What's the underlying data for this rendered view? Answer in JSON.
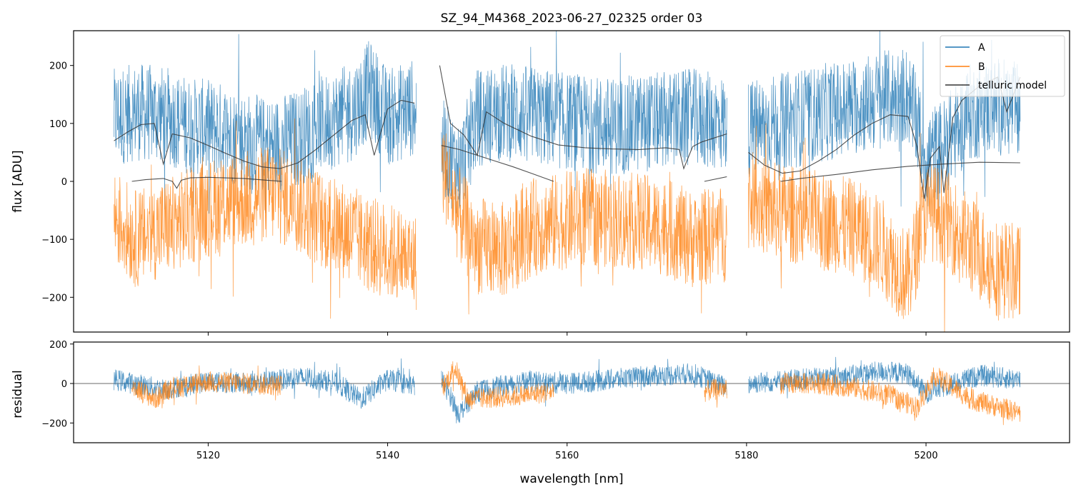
{
  "chart_data": [
    {
      "type": "line",
      "title": "SZ_94_M4368_2023-06-27_02325  order 03",
      "xlabel": "",
      "ylabel": "flux [ADU]",
      "xlim": [
        5105,
        5216
      ],
      "ylim": [
        -260,
        260
      ],
      "yticks": [
        -200,
        -100,
        0,
        100,
        200
      ],
      "ytick_labels": [
        "−200",
        "−100",
        "0",
        "100",
        "200"
      ],
      "xticks": [
        5120,
        5140,
        5160,
        5180,
        5200
      ],
      "legend": {
        "position": "top-right",
        "entries": [
          "A",
          "B",
          "telluric model"
        ]
      },
      "series": [
        {
          "name": "A",
          "color": "#1f77b4",
          "segments": [
            {
              "x": [
                5109.5,
                5112,
                5115,
                5118,
                5121,
                5124,
                5127,
                5130,
                5133,
                5136,
                5138,
                5140,
                5143.2
              ],
              "y": [
                110,
                120,
                115,
                95,
                90,
                70,
                60,
                75,
                100,
                120,
                160,
                110,
                130
              ]
            },
            {
              "x": [
                5146,
                5148,
                5150,
                5153,
                5156,
                5159,
                5162,
                5165,
                5168,
                5171,
                5174,
                5177.8
              ],
              "y": [
                60,
                20,
                110,
                120,
                115,
                105,
                100,
                95,
                100,
                105,
                110,
                100
              ]
            },
            {
              "x": [
                5180.2,
                5183,
                5186,
                5189,
                5192,
                5195,
                5198,
                5200,
                5202,
                5205,
                5208,
                5210.5
              ],
              "y": [
                90,
                100,
                110,
                120,
                130,
                140,
                150,
                40,
                60,
                120,
                130,
                120
              ]
            }
          ]
        },
        {
          "name": "B",
          "color": "#ff7f0e",
          "segments": [
            {
              "x": [
                5109.5,
                5112,
                5115,
                5118,
                5121,
                5124,
                5127,
                5130,
                5133,
                5136,
                5138,
                5140,
                5143.2
              ],
              "y": [
                -60,
                -100,
                -80,
                -60,
                -40,
                -30,
                -20,
                -40,
                -70,
                -90,
                -110,
                -120,
                -140
              ]
            },
            {
              "x": [
                5146,
                5148,
                5150,
                5153,
                5156,
                5159,
                5162,
                5165,
                5168,
                5171,
                5174,
                5177.8
              ],
              "y": [
                30,
                -60,
                -110,
                -120,
                -80,
                -70,
                -60,
                -65,
                -70,
                -80,
                -100,
                -90
              ]
            },
            {
              "x": [
                5180.2,
                5183,
                5186,
                5189,
                5192,
                5195,
                5198,
                5200,
                5202,
                5205,
                5208,
                5210.5
              ],
              "y": [
                -30,
                -50,
                -60,
                -70,
                -80,
                -110,
                -170,
                -50,
                -60,
                -110,
                -150,
                -160
              ]
            }
          ]
        },
        {
          "name": "telluric model",
          "color": "#333333",
          "segments": [
            {
              "x": [
                5109.5,
                5111,
                5112.5,
                5114,
                5115,
                5116,
                5118,
                5120,
                5122,
                5124,
                5126,
                5128,
                5130,
                5132,
                5134,
                5136,
                5137.5,
                5138.5,
                5140,
                5141.5,
                5143
              ],
              "y": [
                70,
                85,
                98,
                100,
                30,
                82,
                75,
                62,
                48,
                35,
                25,
                22,
                32,
                55,
                80,
                105,
                115,
                45,
                125,
                140,
                135
              ]
            },
            {
              "x": [
                5145.8,
                5147,
                5148.5,
                5150,
                5151,
                5153,
                5156,
                5159,
                5162,
                5165,
                5168,
                5171,
                5172.5,
                5173,
                5174,
                5175,
                5177.8
              ],
              "y": [
                200,
                100,
                80,
                45,
                120,
                100,
                78,
                63,
                58,
                56,
                55,
                58,
                55,
                22,
                60,
                68,
                82
              ]
            },
            {
              "x": [
                5180.2,
                5182,
                5184,
                5186,
                5188,
                5190,
                5192,
                5194,
                5196,
                5198,
                5199,
                5199.8,
                5200.5,
                5201.5,
                5202,
                5203,
                5204,
                5206,
                5208,
                5209,
                5210.5
              ],
              "y": [
                50,
                28,
                14,
                18,
                35,
                55,
                80,
                100,
                115,
                112,
                60,
                -30,
                40,
                60,
                -20,
                110,
                140,
                165,
                180,
                120,
                180
              ]
            }
          ],
          "overlay_segments": [
            {
              "x": [
                5111.5,
                5113,
                5115,
                5116,
                5116.5,
                5117,
                5118,
                5120,
                5124,
                5128.2
              ],
              "y": [
                0,
                3,
                5,
                0,
                -12,
                2,
                6,
                7,
                5,
                0
              ]
            },
            {
              "x": [
                5146,
                5148,
                5150,
                5152,
                5154,
                5156,
                5158.5
              ],
              "y": [
                62,
                55,
                45,
                35,
                25,
                14,
                0
              ]
            },
            {
              "x": [
                5175.3,
                5177.8
              ],
              "y": [
                0,
                8
              ]
            },
            {
              "x": [
                5183.8,
                5186,
                5190,
                5194,
                5198,
                5202,
                5206,
                5210.5
              ],
              "y": [
                0,
                5,
                12,
                20,
                26,
                30,
                33,
                32
              ]
            }
          ]
        }
      ]
    },
    {
      "type": "line",
      "title": "",
      "xlabel": "wavelength [nm]",
      "ylabel": "residual",
      "xlim": [
        5105,
        5216
      ],
      "ylim": [
        -300,
        210
      ],
      "yticks": [
        -200,
        0,
        200
      ],
      "ytick_labels": [
        "−200",
        "0",
        "200"
      ],
      "xticks": [
        5120,
        5140,
        5160,
        5180,
        5200
      ],
      "xtick_labels": [
        "5120",
        "5140",
        "5160",
        "5180",
        "5200"
      ],
      "reference_line": 0,
      "series": [
        {
          "name": "A",
          "color": "#1f77b4",
          "segments": [
            {
              "x": [
                5109.5,
                5115,
                5120,
                5125,
                5130,
                5134,
                5137,
                5140,
                5143
              ],
              "y": [
                20,
                -30,
                10,
                0,
                30,
                10,
                -80,
                20,
                -10
              ]
            },
            {
              "x": [
                5146,
                5148,
                5150,
                5155,
                5160,
                5165,
                5170,
                5174,
                5177.8
              ],
              "y": [
                20,
                -150,
                -40,
                10,
                0,
                20,
                40,
                50,
                -20
              ]
            },
            {
              "x": [
                5180.2,
                5185,
                5190,
                5195,
                5198,
                5200,
                5203,
                5206,
                5210.5
              ],
              "y": [
                0,
                20,
                30,
                60,
                50,
                -50,
                0,
                40,
                20
              ]
            }
          ]
        },
        {
          "name": "B",
          "color": "#ff7f0e",
          "segments": [
            {
              "x": [
                5111.5,
                5114,
                5116,
                5120,
                5124,
                5128.2
              ],
              "y": [
                -10,
                -80,
                -20,
                10,
                0,
                -10
              ]
            },
            {
              "x": [
                5146,
                5147.5,
                5149,
                5152,
                5155,
                5158.5
              ],
              "y": [
                -30,
                80,
                -80,
                -70,
                -60,
                -40
              ]
            },
            {
              "x": [
                5175.3,
                5177.8
              ],
              "y": [
                -40,
                -20
              ]
            },
            {
              "x": [
                5183.8,
                5188,
                5192,
                5196,
                5199,
                5201,
                5205,
                5210.5
              ],
              "y": [
                0,
                0,
                -20,
                -60,
                -120,
                40,
                -80,
                -150
              ]
            }
          ]
        }
      ]
    }
  ]
}
